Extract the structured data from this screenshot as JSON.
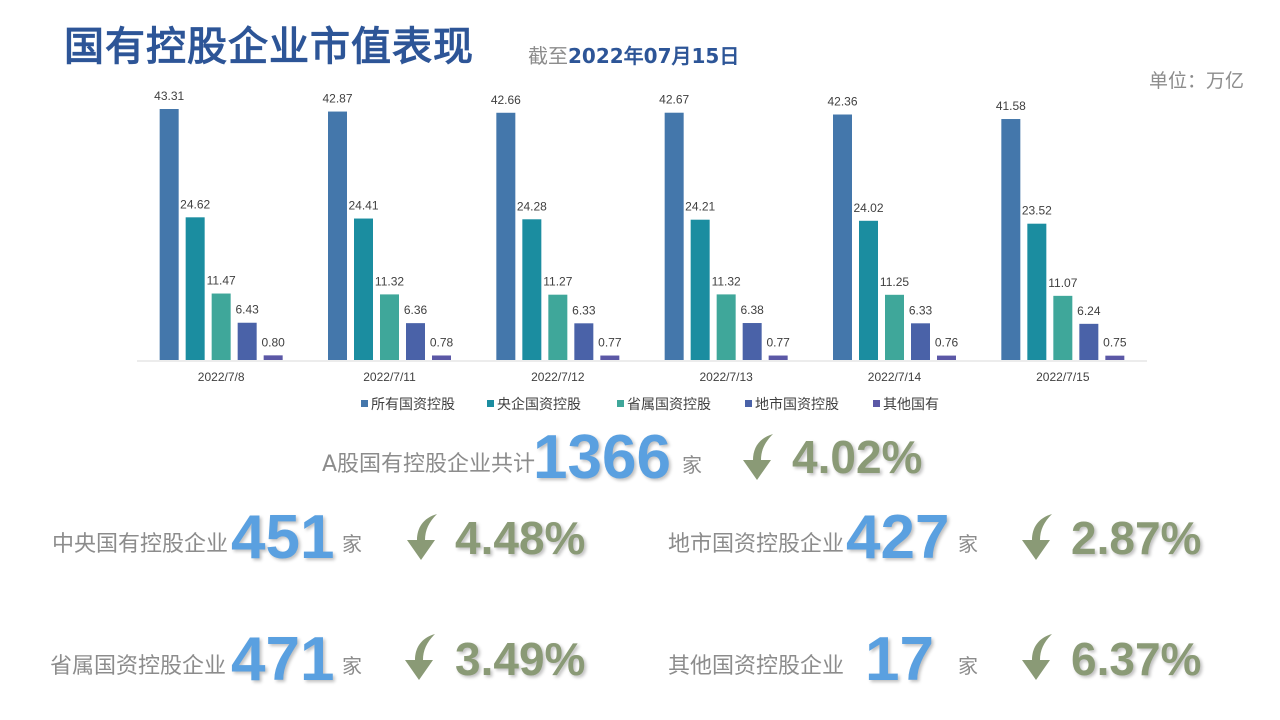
{
  "header": {
    "title": "国有控股企业市值表现",
    "subtitle_prefix": "截至",
    "subtitle_date": "2022年07月15日",
    "unit_label": "单位：万亿"
  },
  "chart_data": {
    "type": "bar",
    "categories": [
      "2022/7/8",
      "2022/7/11",
      "2022/7/12",
      "2022/7/13",
      "2022/7/14",
      "2022/7/15"
    ],
    "series": [
      {
        "name": "所有国资控股",
        "color": "#4477ab",
        "values": [
          43.31,
          42.87,
          42.66,
          42.67,
          42.36,
          41.58
        ]
      },
      {
        "name": "央企国资控股",
        "color": "#1b8da0",
        "values": [
          24.62,
          24.41,
          24.28,
          24.21,
          24.02,
          23.52
        ]
      },
      {
        "name": "省属国资控股",
        "color": "#3fa79a",
        "values": [
          11.47,
          11.32,
          11.27,
          11.32,
          11.25,
          11.07
        ]
      },
      {
        "name": "地市国资控股",
        "color": "#4a62a8",
        "values": [
          6.43,
          6.36,
          6.33,
          6.38,
          6.33,
          6.24
        ]
      },
      {
        "name": "其他国有",
        "color": "#5b58a6",
        "values": [
          0.8,
          0.78,
          0.77,
          0.77,
          0.76,
          0.75
        ]
      }
    ],
    "value_labels": [
      [
        "43.31",
        "42.87",
        "42.66",
        "42.67",
        "42.36",
        "41.58"
      ],
      [
        "24.62",
        "24.41",
        "24.28",
        "24.21",
        "24.02",
        "23.52"
      ],
      [
        "11.47",
        "11.32",
        "11.27",
        "11.32",
        "11.25",
        "11.07"
      ],
      [
        "6.43",
        "6.36",
        "6.33",
        "6.38",
        "6.33",
        "6.24"
      ],
      [
        "0.80",
        "0.78",
        "0.77",
        "0.77",
        "0.76",
        "0.75"
      ]
    ],
    "ylim": [
      0,
      43.31
    ],
    "legend": "bottom",
    "grid": false
  },
  "stats": {
    "total": {
      "label": "A股国有控股企业共计",
      "count": "1366",
      "unit": "家",
      "change": "4.02%",
      "direction": "down"
    },
    "central": {
      "label": "中央国有控股企业",
      "count": "451",
      "unit": "家",
      "change": "4.48%",
      "direction": "down"
    },
    "municipal": {
      "label": "地市国资控股企业",
      "count": "427",
      "unit": "家",
      "change": "2.87%",
      "direction": "down"
    },
    "provincial": {
      "label": "省属国资控股企业",
      "count": "471",
      "unit": "家",
      "change": "3.49%",
      "direction": "down"
    },
    "other": {
      "label": "其他国资控股企业",
      "count": "17",
      "unit": "家",
      "change": "6.37%",
      "direction": "down"
    }
  },
  "colors": {
    "title": "#2d5597",
    "count": "#5aa0e0",
    "change": "#8a9a76"
  },
  "icons": {
    "down_arrow": "curved-down-arrow-icon"
  }
}
